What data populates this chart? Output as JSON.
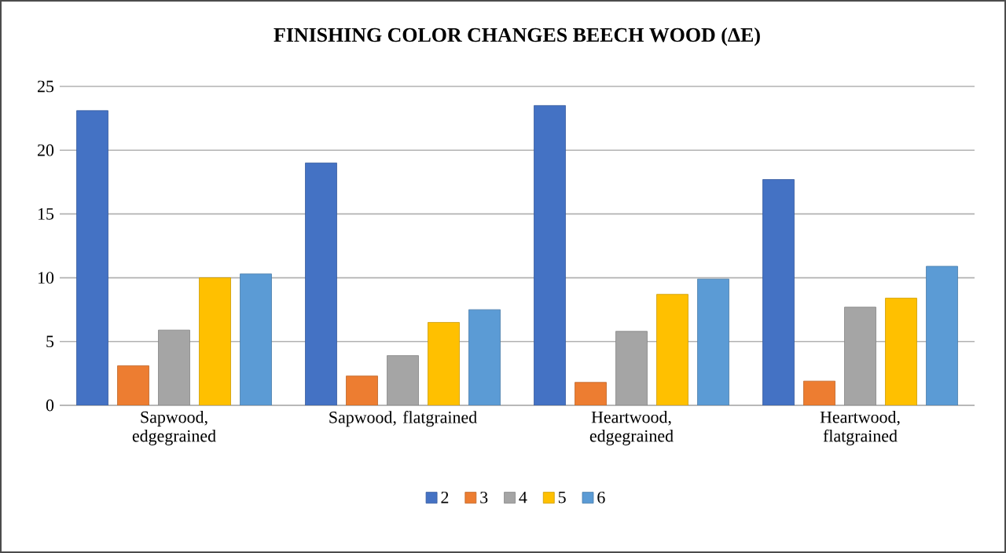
{
  "chart_data": {
    "type": "bar",
    "title": "FINISHING COLOR CHANGES BEECH WOOD (ΔE)",
    "categories": [
      "Sapwood, edgegrained",
      "Sapwood, flatgrained",
      "Heartwood, edgegrained",
      "Heartwood, flatgrained"
    ],
    "series": [
      {
        "name": "2",
        "color": "#4472c4",
        "values": [
          23.1,
          19.0,
          23.5,
          17.7
        ]
      },
      {
        "name": "3",
        "color": "#ed7d31",
        "values": [
          3.1,
          2.3,
          1.8,
          1.9
        ]
      },
      {
        "name": "4",
        "color": "#a5a5a5",
        "values": [
          5.9,
          3.9,
          5.8,
          7.7
        ]
      },
      {
        "name": "5",
        "color": "#ffc000",
        "values": [
          10.0,
          6.5,
          8.7,
          8.4
        ]
      },
      {
        "name": "6",
        "color": "#5b9bd5",
        "values": [
          10.3,
          7.5,
          9.9,
          10.9
        ]
      }
    ],
    "ylim": [
      0,
      25
    ],
    "yticks": [
      0,
      5,
      10,
      15,
      20,
      25
    ],
    "grid": "y",
    "legend": "bottom"
  }
}
